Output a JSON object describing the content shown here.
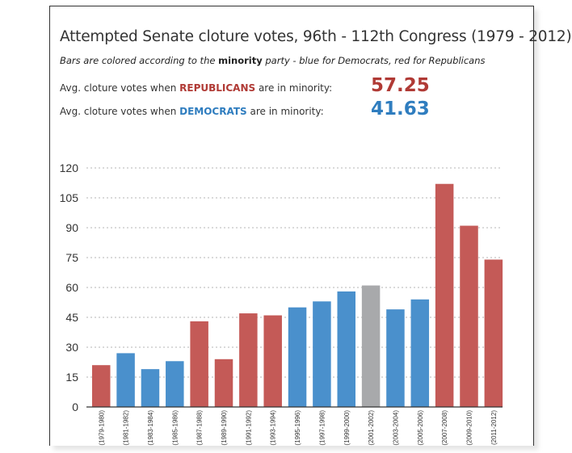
{
  "title": "Attempted Senate cloture votes, 96th - 112th Congress (1979 - 2012)",
  "subtitle": {
    "before": "Bars are colored according to the ",
    "emphasis": "minority",
    "after": " party - blue for Democrats, red for Republicans"
  },
  "stats": [
    {
      "prefix": "Avg. cloture votes when ",
      "party": "REPUBLICANS",
      "suffix": " are in minority:",
      "value": "57.25",
      "color": "#b03a35"
    },
    {
      "prefix": "Avg. cloture votes when ",
      "party": "DEMOCRATS",
      "suffix": " are in minority:",
      "value": "41.63",
      "color": "#2f7dbf"
    }
  ],
  "colors": {
    "Republicans": "#c45a57",
    "Democrats": "#4a90cc",
    "None": "#a8a9ab",
    "grid": "#b5b5b5",
    "axis": "#333333"
  },
  "chart_data": {
    "type": "bar",
    "title": "Attempted Senate cloture votes, 96th - 112th Congress (1979 - 2012)",
    "xlabel": "",
    "ylabel": "",
    "ylim": [
      0,
      120
    ],
    "yticks": [
      0,
      15,
      30,
      45,
      60,
      75,
      90,
      105,
      120
    ],
    "grid": true,
    "categories": [
      "(1979-1980)",
      "(1981-1982)",
      "(1983-1984)",
      "(1985-1986)",
      "(1987-1988)",
      "(1989-1990)",
      "(1991-1992)",
      "(1993-1994)",
      "(1995-1996)",
      "(1997-1998)",
      "(1999-2000)",
      "(2001-2002)",
      "(2003-2004)",
      "(2005-2006)",
      "(2007-2008)",
      "(2009-2010)",
      "(2011-2012)"
    ],
    "values": [
      21,
      27,
      19,
      23,
      43,
      24,
      47,
      46,
      50,
      53,
      58,
      61,
      49,
      54,
      112,
      91,
      74
    ],
    "minority_party": [
      "Republicans",
      "Democrats",
      "Democrats",
      "Democrats",
      "Republicans",
      "Republicans",
      "Republicans",
      "Republicans",
      "Democrats",
      "Democrats",
      "Democrats",
      "None",
      "Democrats",
      "Democrats",
      "Republicans",
      "Republicans",
      "Republicans"
    ]
  }
}
